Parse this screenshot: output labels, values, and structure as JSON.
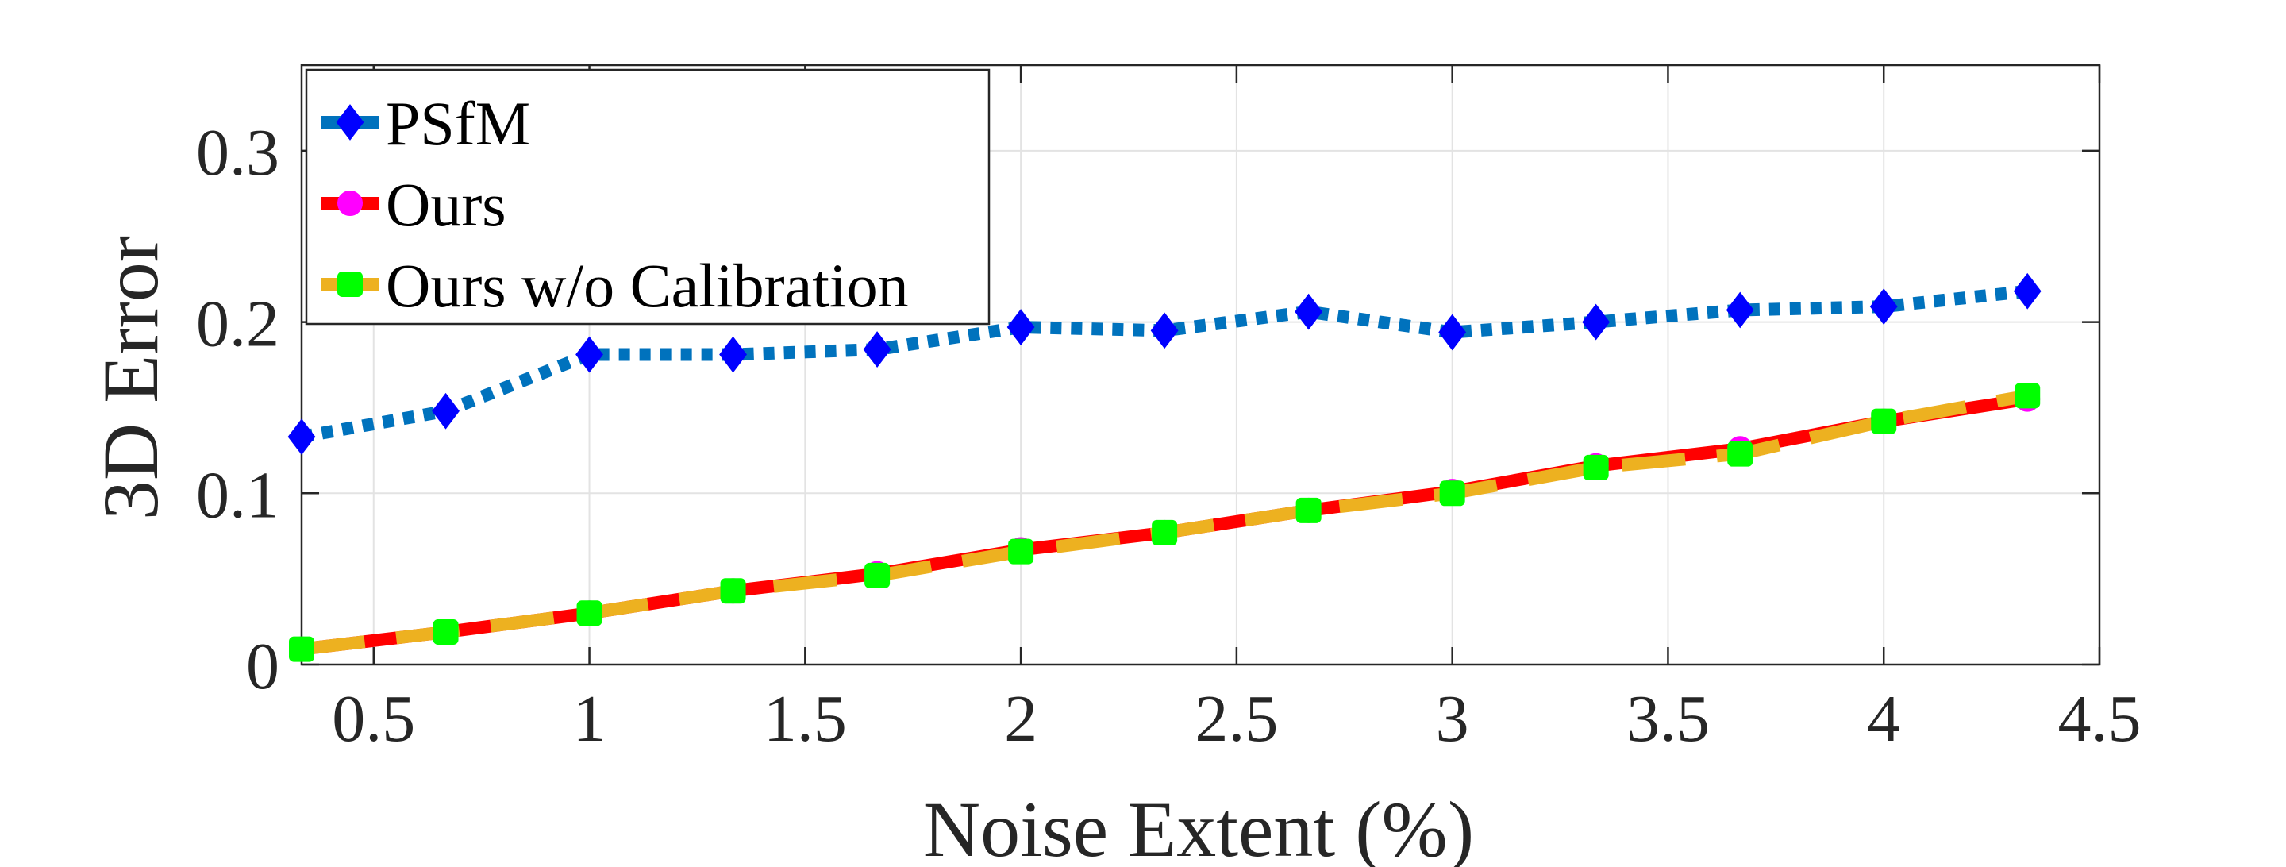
{
  "chart_data": {
    "type": "line",
    "title": "",
    "xlabel": "Noise Extent (%)",
    "ylabel": "3D Error",
    "xlim": [
      0.333,
      4.5
    ],
    "ylim": [
      0,
      0.35
    ],
    "xticks": [
      0.5,
      1,
      1.5,
      2,
      2.5,
      3,
      3.5,
      4,
      4.5
    ],
    "xtick_labels": [
      "0.5",
      "1",
      "1.5",
      "2",
      "2.5",
      "3",
      "3.5",
      "4",
      "4.5"
    ],
    "yticks": [
      0,
      0.1,
      0.2,
      0.3
    ],
    "ytick_labels": [
      "0",
      "0.1",
      "0.2",
      "0.3"
    ],
    "grid": true,
    "legend_position": "top-left",
    "x": [
      0.333,
      0.667,
      1.0,
      1.333,
      1.667,
      2.0,
      2.333,
      2.667,
      3.0,
      3.333,
      3.667,
      4.0,
      4.333
    ],
    "series": [
      {
        "name": "PSfM",
        "line_color": "#0072BD",
        "marker_color": "#0000FF",
        "line_style": "dotted",
        "marker": "diamond",
        "values": [
          0.133,
          0.148,
          0.181,
          0.181,
          0.184,
          0.197,
          0.195,
          0.206,
          0.194,
          0.2,
          0.207,
          0.209,
          0.218
        ]
      },
      {
        "name": "Ours",
        "line_color": "#FF0000",
        "marker_color": "#FF00FF",
        "line_style": "solid",
        "marker": "circle",
        "values": [
          0.009,
          0.019,
          0.03,
          0.043,
          0.053,
          0.067,
          0.077,
          0.09,
          0.101,
          0.116,
          0.126,
          0.142,
          0.155
        ]
      },
      {
        "name": "Ours w/o Calibration",
        "line_color": "#EDB120",
        "marker_color": "#00FF00",
        "line_style": "dashed",
        "marker": "square",
        "values": [
          0.009,
          0.019,
          0.03,
          0.043,
          0.052,
          0.066,
          0.077,
          0.09,
          0.1,
          0.115,
          0.123,
          0.142,
          0.157
        ]
      }
    ]
  }
}
